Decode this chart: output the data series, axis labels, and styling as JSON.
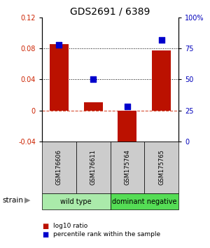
{
  "title": "GDS2691 / 6389",
  "samples": [
    "GSM176606",
    "GSM176611",
    "GSM175764",
    "GSM175765"
  ],
  "log10_ratio": [
    0.085,
    0.01,
    -0.052,
    0.077
  ],
  "percentile_rank_pct": [
    78,
    50,
    28,
    82
  ],
  "groups": [
    {
      "label": "wild type",
      "spans": [
        0,
        1
      ],
      "color": "#AAEAAA"
    },
    {
      "label": "dominant negative",
      "spans": [
        2,
        3
      ],
      "color": "#55DD55"
    }
  ],
  "ylim_left": [
    -0.04,
    0.12
  ],
  "ylim_right": [
    0,
    100
  ],
  "bar_color": "#BB1100",
  "square_color": "#0000CC",
  "hlines_dotted": [
    0.08,
    0.04
  ],
  "hline_dashed": 0.0,
  "yticks_left": [
    -0.04,
    0.0,
    0.04,
    0.08,
    0.12
  ],
  "ytick_labels_left": [
    "-0.04",
    "0",
    "0.04",
    "0.08",
    "0.12"
  ],
  "yticks_right": [
    0,
    25,
    50,
    75,
    100
  ],
  "ytick_labels_right": [
    "0",
    "25",
    "50",
    "75",
    "100%"
  ],
  "left_tick_color": "#CC2200",
  "right_tick_color": "#0000BB",
  "bar_width": 0.55,
  "square_size": 28,
  "title_fontsize": 10,
  "tick_fontsize": 7,
  "sample_fontsize": 6,
  "group_fontsize": 7
}
